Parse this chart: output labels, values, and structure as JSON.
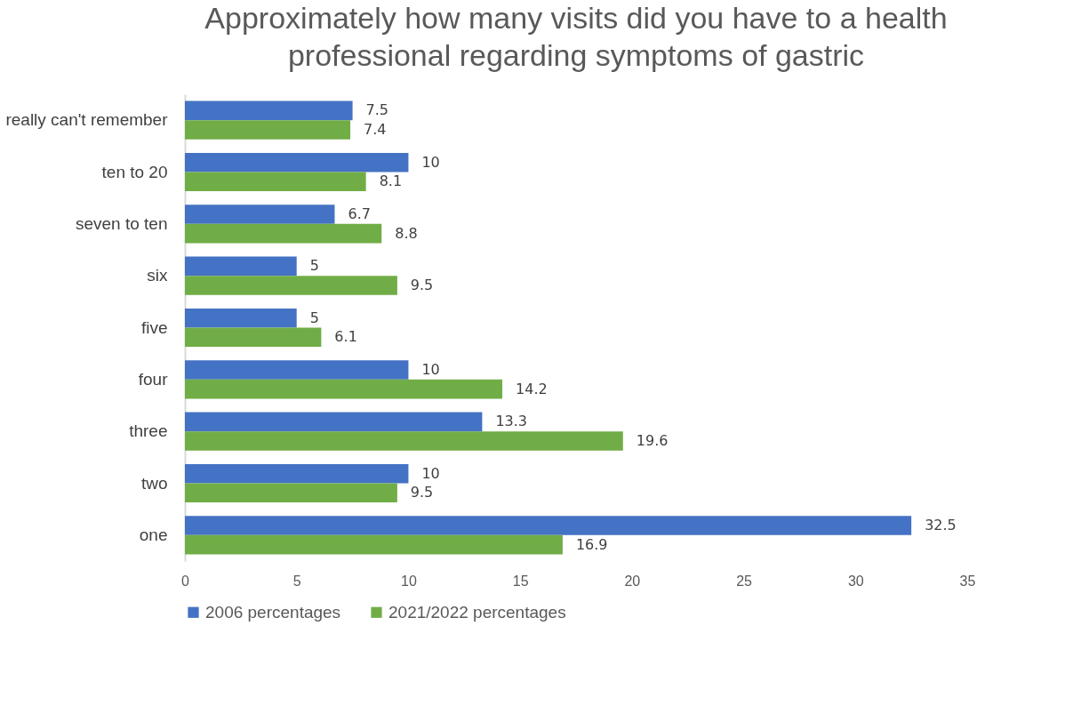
{
  "chart_data": {
    "type": "bar",
    "orientation": "horizontal",
    "title": "Approximately how many visits did you have to a health professional regarding symptoms of gastric",
    "categories": [
      "really can't remember",
      "ten to 20",
      "seven to ten",
      "six",
      "five",
      "four",
      "three",
      "two",
      "one"
    ],
    "series": [
      {
        "name": "2006 percentages",
        "color": "#4472c4",
        "values": [
          7.5,
          10,
          6.7,
          5,
          5,
          10,
          13.3,
          10,
          32.5
        ]
      },
      {
        "name": "2021/2022 percentages",
        "color": "#70ad47",
        "values": [
          7.4,
          8.1,
          8.8,
          9.5,
          6.1,
          14.2,
          19.6,
          9.5,
          16.9
        ]
      }
    ],
    "xlim": [
      0,
      35
    ],
    "xticks": [
      0,
      5,
      10,
      15,
      20,
      25,
      30,
      35
    ],
    "grid": false,
    "legend": "bottom",
    "data_labels": true
  }
}
